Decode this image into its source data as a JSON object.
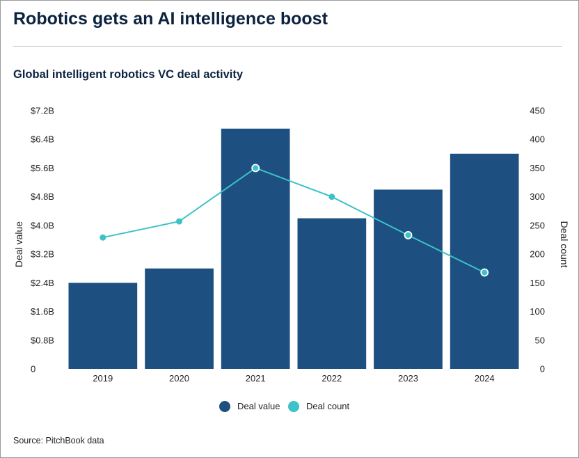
{
  "header": {
    "title": "Robotics gets an AI intelligence boost"
  },
  "footer": {
    "source": "Source: PitchBook data"
  },
  "colors": {
    "deal_value": "#1d4f80",
    "deal_count": "#3cc2c8"
  },
  "chart_data": {
    "type": "bar",
    "title": "Global intelligent robotics VC deal activity",
    "categories": [
      "2019",
      "2020",
      "2021",
      "2022",
      "2023",
      "2024"
    ],
    "series": [
      {
        "name": "Deal value",
        "type": "bar",
        "axis": "left",
        "values": [
          2.4,
          2.8,
          6.7,
          4.2,
          5.0,
          6.0
        ]
      },
      {
        "name": "Deal count",
        "type": "line",
        "axis": "right",
        "values": [
          229,
          257,
          350,
          300,
          233,
          168
        ]
      }
    ],
    "y_left": {
      "label": "Deal value",
      "range": [
        0,
        7.2
      ],
      "ticks": [
        "0",
        "$0.8B",
        "$1.6B",
        "$2.4B",
        "$3.2B",
        "$4.0B",
        "$4.8B",
        "$5.6B",
        "$6.4B",
        "$7.2B"
      ]
    },
    "y_right": {
      "label": "Deal count",
      "range": [
        0,
        450
      ],
      "ticks": [
        "0",
        "50",
        "100",
        "150",
        "200",
        "250",
        "300",
        "350",
        "400",
        "450"
      ]
    },
    "legend_position": "bottom",
    "grid": false
  }
}
